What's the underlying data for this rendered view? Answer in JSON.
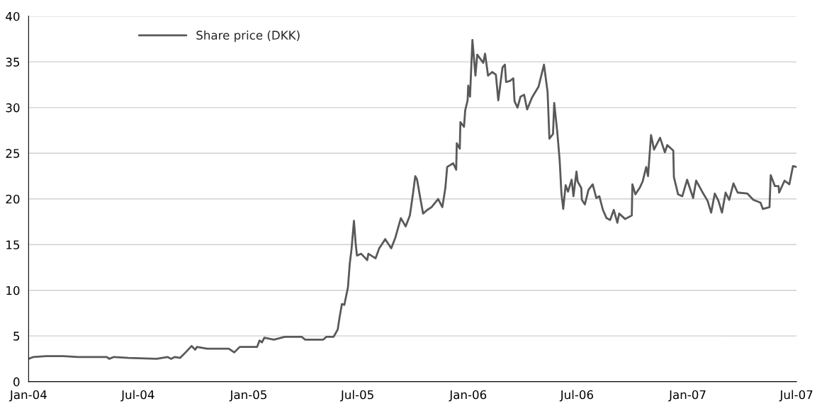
{
  "chart_data": {
    "type": "line",
    "x": [
      "2004-01-01",
      "2004-01-09",
      "2004-01-30",
      "2004-02-28",
      "2004-03-23",
      "2004-05-10",
      "2004-05-14",
      "2004-05-22",
      "2004-06-15",
      "2004-08-01",
      "2004-08-19",
      "2004-08-25",
      "2004-08-31",
      "2004-09-09",
      "2004-09-18",
      "2004-09-28",
      "2004-10-04",
      "2004-10-07",
      "2004-10-24",
      "2004-11-29",
      "2004-12-08",
      "2004-12-17",
      "2005-01-15",
      "2005-01-19",
      "2005-01-23",
      "2005-01-27",
      "2005-02-12",
      "2005-03-02",
      "2005-03-30",
      "2005-04-05",
      "2005-05-05",
      "2005-05-10",
      "2005-05-22",
      "2005-05-29",
      "2005-06-01",
      "2005-06-05",
      "2005-06-09",
      "2005-06-15",
      "2005-06-18",
      "2005-06-21",
      "2005-06-25",
      "2005-06-28",
      "2005-06-30",
      "2005-07-07",
      "2005-07-17",
      "2005-07-19",
      "2005-07-31",
      "2005-08-06",
      "2005-08-16",
      "2005-08-26",
      "2005-09-02",
      "2005-09-11",
      "2005-09-19",
      "2005-09-26",
      "2005-10-01",
      "2005-10-05",
      "2005-10-08",
      "2005-10-13",
      "2005-10-18",
      "2005-10-25",
      "2005-11-01",
      "2005-11-12",
      "2005-11-19",
      "2005-11-24",
      "2005-11-27",
      "2005-12-07",
      "2005-12-12",
      "2005-12-13",
      "2005-12-18",
      "2005-12-19",
      "2005-12-25",
      "2005-12-27",
      "2005-12-31",
      "2006-01-01",
      "2006-01-04",
      "2006-01-08",
      "2006-01-13",
      "2006-01-16",
      "2006-01-26",
      "2006-01-29",
      "2006-02-03",
      "2006-02-10",
      "2006-02-16",
      "2006-02-20",
      "2006-02-27",
      "2006-03-03",
      "2006-03-05",
      "2006-03-11",
      "2006-03-17",
      "2006-03-19",
      "2006-03-24",
      "2006-03-29",
      "2006-04-04",
      "2006-04-09",
      "2006-04-17",
      "2006-04-28",
      "2006-05-07",
      "2006-05-13",
      "2006-05-16",
      "2006-05-22",
      "2006-05-24",
      "2006-05-29",
      "2006-06-02",
      "2006-06-05",
      "2006-06-08",
      "2006-06-12",
      "2006-06-16",
      "2006-06-22",
      "2006-06-25",
      "2006-06-30",
      "2006-07-02",
      "2006-07-08",
      "2006-07-09",
      "2006-07-14",
      "2006-07-20",
      "2006-07-27",
      "2006-08-02",
      "2006-08-07",
      "2006-08-13",
      "2006-08-19",
      "2006-08-25",
      "2006-08-31",
      "2006-09-06",
      "2006-09-09",
      "2006-09-19",
      "2006-09-30",
      "2006-10-01",
      "2006-10-06",
      "2006-10-13",
      "2006-10-18",
      "2006-10-24",
      "2006-10-27",
      "2006-11-01",
      "2006-11-06",
      "2006-11-16",
      "2006-11-24",
      "2006-11-28",
      "2006-12-08",
      "2006-12-09",
      "2006-12-16",
      "2006-12-23",
      "2006-12-31",
      "2007-01-10",
      "2007-01-15",
      "2007-01-25",
      "2007-02-03",
      "2007-02-09",
      "2007-02-15",
      "2007-02-21",
      "2007-02-27",
      "2007-03-05",
      "2007-03-11",
      "2007-03-18",
      "2007-03-25",
      "2007-04-10",
      "2007-04-20",
      "2007-05-02",
      "2007-05-06",
      "2007-05-17",
      "2007-05-19",
      "2007-05-26",
      "2007-06-01",
      "2007-06-02",
      "2007-06-11",
      "2007-06-19",
      "2007-06-25",
      "2007-07-01"
    ],
    "series": [
      {
        "name": "Share price (DKK)",
        "color": "#595959",
        "values": [
          2.5,
          2.7,
          2.8,
          2.8,
          2.7,
          2.7,
          2.5,
          2.7,
          2.6,
          2.5,
          2.7,
          2.5,
          2.7,
          2.6,
          3.2,
          3.9,
          3.5,
          3.8,
          3.6,
          3.6,
          3.2,
          3.8,
          3.8,
          4.5,
          4.3,
          4.8,
          4.6,
          4.9,
          4.9,
          4.6,
          4.6,
          4.9,
          4.9,
          5.7,
          7,
          8.5,
          8.4,
          10.3,
          12.9,
          14.5,
          17.6,
          15,
          13.8,
          14.0,
          13.3,
          14.0,
          13.5,
          14.6,
          15.6,
          14.6,
          15.8,
          17.9,
          17,
          18.2,
          20.5,
          22.5,
          22.1,
          20.2,
          18.4,
          18.8,
          19.1,
          20,
          19.1,
          21.2,
          23.5,
          23.9,
          23.2,
          26.1,
          25.5,
          28.4,
          27.9,
          29.7,
          30.8,
          32.4,
          31.2,
          37.4,
          33.5,
          35.8,
          34.9,
          35.9,
          33.5,
          33.9,
          33.6,
          30.8,
          34.4,
          34.7,
          32.8,
          32.9,
          33.2,
          30.7,
          30,
          31.2,
          31.4,
          29.8,
          31.1,
          32.3,
          34.7,
          31.7,
          26.6,
          27.1,
          30.5,
          27.4,
          24.3,
          20.6,
          18.9,
          21.5,
          20.8,
          22.1,
          20.3,
          23,
          21.9,
          21.2,
          19.9,
          19.4,
          21,
          21.6,
          20.1,
          20.3,
          18.8,
          17.9,
          17.7,
          18.8,
          17.4,
          18.4,
          17.8,
          18.2,
          21.6,
          20.5,
          21.2,
          21.9,
          23.5,
          22.5,
          27,
          25.4,
          26.7,
          25.1,
          25.9,
          25.3,
          22.4,
          20.5,
          20.3,
          22.1,
          20.1,
          22,
          20.8,
          19.8,
          18.5,
          20.6,
          19.8,
          18.5,
          20.7,
          19.9,
          21.7,
          20.7,
          20.6,
          19.9,
          19.6,
          18.9,
          19.1,
          22.6,
          21.4,
          21.4,
          20.7,
          22,
          21.6,
          23.6,
          23.5
        ]
      }
    ],
    "xlim": [
      "2004-01-01",
      "2007-07-01"
    ],
    "xticks": [
      {
        "value": "2004-01-01",
        "label": "Jan-04"
      },
      {
        "value": "2004-07-01",
        "label": "Jul-04"
      },
      {
        "value": "2005-01-01",
        "label": "Jan-05"
      },
      {
        "value": "2005-07-01",
        "label": "Jul-05"
      },
      {
        "value": "2006-01-01",
        "label": "Jan-06"
      },
      {
        "value": "2006-07-01",
        "label": "Jul-06"
      },
      {
        "value": "2007-01-01",
        "label": "Jan-07"
      },
      {
        "value": "2007-07-01",
        "label": "Jul-07"
      }
    ],
    "ylim": [
      0,
      40
    ],
    "yticks": [
      0,
      5,
      10,
      15,
      20,
      25,
      30,
      35,
      40
    ],
    "grid": "y",
    "legend": "top left",
    "marker": "none",
    "line_style": "solid"
  }
}
